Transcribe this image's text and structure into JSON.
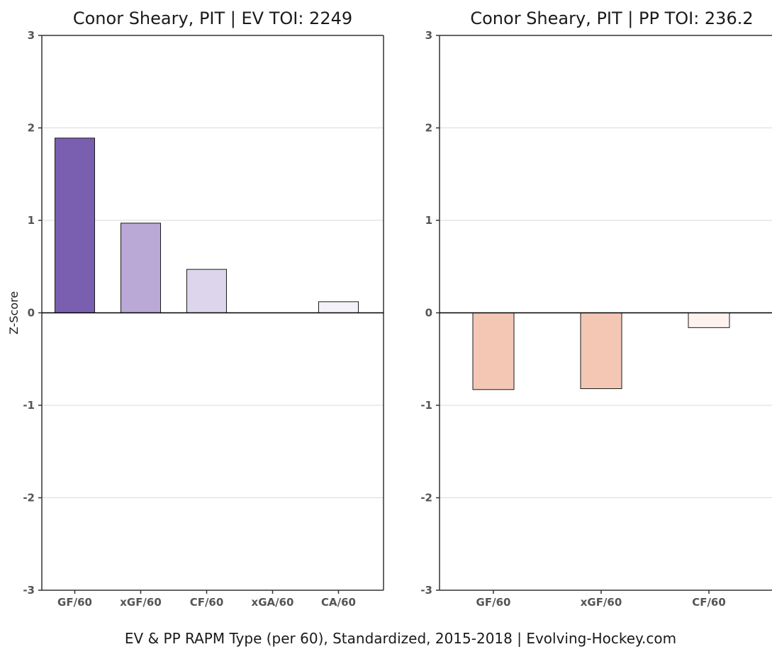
{
  "footer": "EV & PP RAPM Type (per 60), Standardized, 2015-2018   |   Evolving-Hockey.com",
  "colors": {
    "ev_strong": "#7a5fb0",
    "ev_medium": "#baa8d6",
    "ev_light": "#ddd5ec",
    "ev_faint": "#f4f1f8",
    "pp_medium": "#f4c7b5",
    "pp_faint": "#fdf2ee",
    "grid": "#d9d9d9",
    "axis": "#333333"
  },
  "chart_data": [
    {
      "type": "bar",
      "title": "Conor Sheary, PIT  |  EV TOI: 2249",
      "ylabel": "Z-Score",
      "xlabel": "",
      "ylim": [
        -3,
        3
      ],
      "yticks": [
        "3",
        "2",
        "1",
        "0",
        "-1",
        "-2",
        "-3"
      ],
      "ytick_values": [
        3,
        2,
        1,
        0,
        -1,
        -2,
        -3
      ],
      "grid": true,
      "categories": [
        "GF/60",
        "xGF/60",
        "CF/60",
        "xGA/60",
        "CA/60"
      ],
      "values": [
        1.89,
        0.97,
        0.47,
        0.0,
        0.12
      ],
      "bar_colors": [
        "ev_strong",
        "ev_medium",
        "ev_light",
        "ev_faint",
        "ev_faint"
      ]
    },
    {
      "type": "bar",
      "title": "Conor Sheary, PIT  |  PP TOI: 236.2",
      "ylabel": "",
      "xlabel": "",
      "ylim": [
        -3,
        3
      ],
      "yticks": [
        "3",
        "2",
        "1",
        "0",
        "-1",
        "-2",
        "-3"
      ],
      "ytick_values": [
        3,
        2,
        1,
        0,
        -1,
        -2,
        -3
      ],
      "grid": true,
      "categories": [
        "GF/60",
        "xGF/60",
        "CF/60"
      ],
      "values": [
        -0.83,
        -0.82,
        -0.16
      ],
      "bar_colors": [
        "pp_medium",
        "pp_medium",
        "pp_faint"
      ]
    }
  ]
}
